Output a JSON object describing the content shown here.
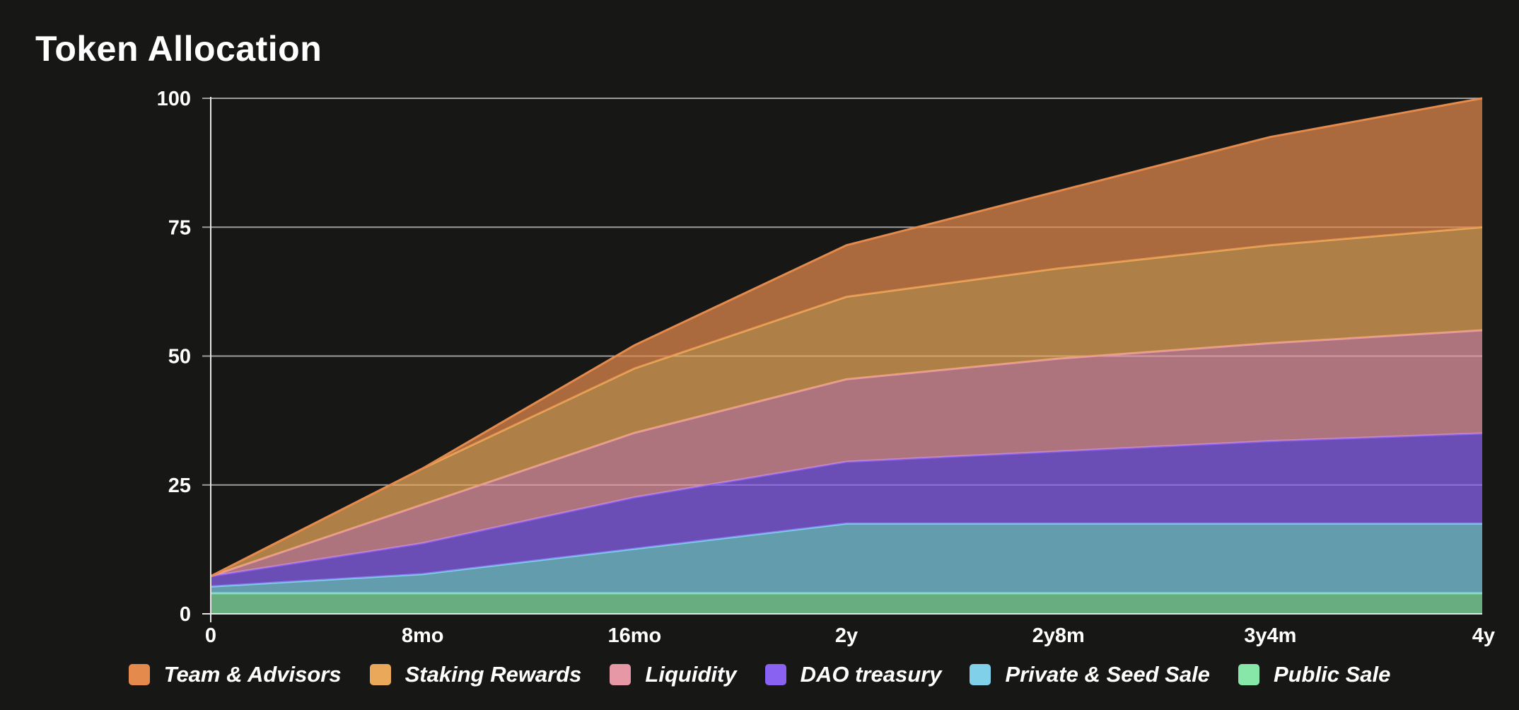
{
  "chart_data": {
    "type": "area",
    "stacked": true,
    "title": "Token Allocation",
    "xlabel": "",
    "ylabel": "",
    "categories": [
      "0",
      "8mo",
      "16mo",
      "2y",
      "2y8m",
      "3y4m",
      "4y"
    ],
    "ylim": [
      0,
      100
    ],
    "yticks": [
      0,
      25,
      50,
      75,
      100
    ],
    "grid": true,
    "legend_position": "bottom",
    "series": [
      {
        "name": "Public Sale",
        "color": "#86e7a8",
        "values": [
          4,
          4,
          4,
          4,
          4,
          4,
          4
        ]
      },
      {
        "name": "Private & Seed Sale",
        "color": "#7fd0e8",
        "values": [
          1.3,
          3.7,
          8.6,
          13.5,
          13.5,
          13.5,
          13.5
        ]
      },
      {
        "name": "DAO treasury",
        "color": "#8a62f2",
        "values": [
          2,
          6,
          10,
          12,
          14,
          16,
          17.5
        ]
      },
      {
        "name": "Liquidity",
        "color": "#e798a6",
        "values": [
          0,
          7.5,
          12.5,
          16,
          18,
          19,
          20
        ]
      },
      {
        "name": "Staking Rewards",
        "color": "#e9a85a",
        "values": [
          0,
          7,
          12.5,
          16,
          17.5,
          19,
          20
        ]
      },
      {
        "name": "Team & Advisors",
        "color": "#e38a4c",
        "values": [
          0,
          0,
          4.5,
          10,
          15,
          21,
          25
        ]
      }
    ],
    "legend_order": [
      "Team & Advisors",
      "Staking Rewards",
      "Liquidity",
      "DAO treasury",
      "Private & Seed Sale",
      "Public Sale"
    ]
  }
}
